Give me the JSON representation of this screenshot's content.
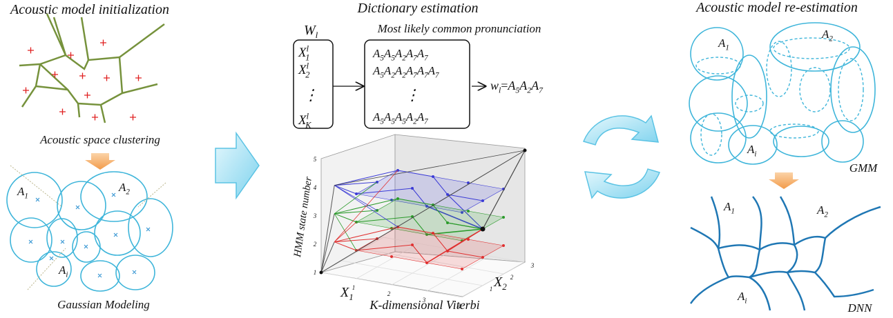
{
  "left": {
    "title": "Acoustic model initialization",
    "clustering_label": "Acoustic space clustering",
    "modeling_label": "Gaussian Modeling",
    "clusters": [
      {
        "base": "A",
        "sub": "1"
      },
      {
        "base": "A",
        "sub": "2"
      },
      {
        "base": "A",
        "sub": "i"
      }
    ]
  },
  "middle": {
    "title": "Dictionary estimation",
    "word": {
      "base": "W",
      "sub": "l"
    },
    "pronunciation_title": "Most likely common pronunciation",
    "observations": [
      {
        "base": "X",
        "sup": "l",
        "sub": "1"
      },
      {
        "base": "X",
        "sup": "l",
        "sub": "2"
      },
      {
        "base": "X",
        "sup": "l",
        "sub": "K"
      }
    ],
    "ellipsis": "⋮",
    "pronunciations": [
      [
        {
          "base": "A",
          "sub": "5"
        },
        {
          "base": "A",
          "sub": "5"
        },
        {
          "base": "A",
          "sub": "2"
        },
        {
          "base": "A",
          "sub": "7"
        },
        {
          "base": "A",
          "sub": "7"
        }
      ],
      [
        {
          "base": "A",
          "sub": "5"
        },
        {
          "base": "A",
          "sub": "2"
        },
        {
          "base": "A",
          "sub": "2"
        },
        {
          "base": "A",
          "sub": "7"
        },
        {
          "base": "A",
          "sub": "7"
        },
        {
          "base": "A",
          "sub": "7"
        }
      ],
      [
        {
          "base": "A",
          "sub": "5"
        },
        {
          "base": "A",
          "sub": "5"
        },
        {
          "base": "A",
          "sub": "5"
        },
        {
          "base": "A",
          "sub": "2"
        },
        {
          "base": "A",
          "sub": "7"
        }
      ]
    ],
    "result": {
      "lhs": {
        "base": "w",
        "sub": "l"
      },
      "eq": "=",
      "rhs": [
        {
          "base": "A",
          "sub": "5"
        },
        {
          "base": "A",
          "sub": "2"
        },
        {
          "base": "A",
          "sub": "7"
        }
      ]
    },
    "plot": {
      "z_label": "HMM state number",
      "x1_label": {
        "base": "X",
        "sub": "1"
      },
      "x2_label": {
        "base": "X",
        "sub": "2"
      },
      "caption": "K-dimensional Viterbi",
      "z_ticks": [
        1,
        2,
        3,
        4,
        5
      ],
      "x1_ticks": [
        1,
        2,
        3,
        4
      ],
      "x2_ticks": [
        1,
        2,
        3
      ]
    }
  },
  "right": {
    "title": "Acoustic model re-estimation",
    "gmm_label": "GMM",
    "dnn_label": "DNN",
    "gmm_clusters": [
      {
        "base": "A",
        "sub": "1"
      },
      {
        "base": "A",
        "sub": "2"
      },
      {
        "base": "A",
        "sub": "i"
      }
    ],
    "dnn_clusters": [
      {
        "base": "A",
        "sub": "1"
      },
      {
        "base": "A",
        "sub": "2"
      },
      {
        "base": "A",
        "sub": "i"
      }
    ]
  }
}
